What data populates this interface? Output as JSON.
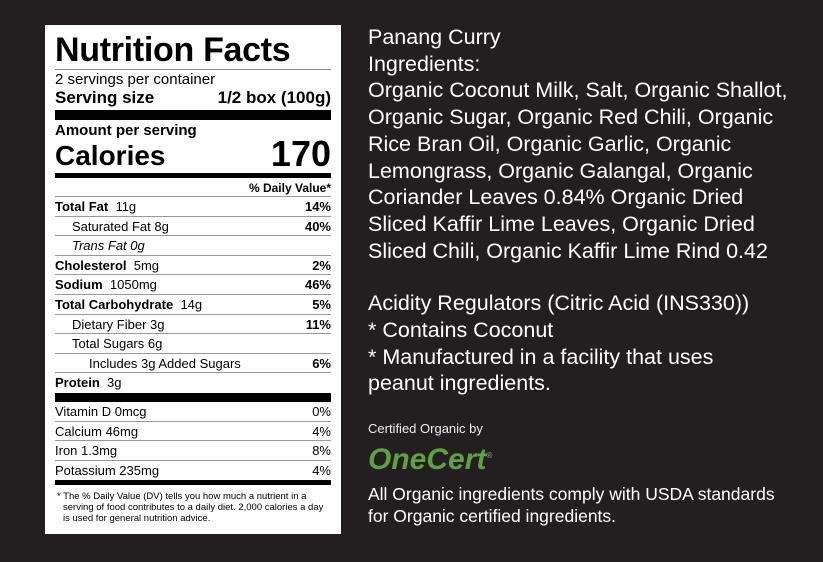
{
  "nutrition": {
    "title": "Nutrition Facts",
    "servings": "2 servings per container",
    "serving_size_label": "Serving size",
    "serving_size_value": "1/2 box (100g)",
    "amount_per_serving": "Amount per serving",
    "calories_label": "Calories",
    "calories_value": "170",
    "dv_header": "% Daily Value*",
    "rows": [
      {
        "name": "Total Fat",
        "amount": "11g",
        "dv": "14%"
      },
      {
        "name": "Saturated Fat 8g",
        "amount": "",
        "dv": "40%"
      },
      {
        "name": "Trans",
        "amount": "Fat 0g",
        "dv": ""
      },
      {
        "name": "Cholesterol",
        "amount": "5mg",
        "dv": "2%"
      },
      {
        "name": "Sodium",
        "amount": "1050mg",
        "dv": "46%"
      },
      {
        "name": "Total Carbohydrate",
        "amount": "14g",
        "dv": "5%"
      },
      {
        "name": "Dietary Fiber 3g",
        "amount": "",
        "dv": "11%"
      },
      {
        "name": "Total Sugars 6g",
        "amount": "",
        "dv": ""
      },
      {
        "name": "Includes 3g Added Sugars",
        "amount": "",
        "dv": "6%"
      },
      {
        "name": "Protein",
        "amount": "3g",
        "dv": ""
      }
    ],
    "vitamins": [
      {
        "name": "Vitamin D 0mcg",
        "dv": "0%"
      },
      {
        "name": "Calcium 46mg",
        "dv": "4%"
      },
      {
        "name": "Iron 1.3mg",
        "dv": "8%"
      },
      {
        "name": "Potassium 235mg",
        "dv": "4%"
      }
    ],
    "footnote": "* The % Daily Value (DV) tells you how much a nutrient in a serving of food contributes to a daily diet. 2,000 calories a day is used for general nutrition advice."
  },
  "ingredients": {
    "product": "Panang Curry",
    "heading": "Ingredients:",
    "lines": [
      "Organic Coconut Milk, Salt, Organic Shallot,",
      "Organic Sugar, Organic Red Chili, Organic",
      "Rice Bran Oil, Organic Garlic, Organic",
      "Lemongrass, Organic Galangal, Organic",
      "Coriander Leaves 0.84% Organic Dried",
      "Sliced Kaffir Lime Leaves, Organic Dried",
      "Sliced Chili, Organic Kaffir Lime Rind 0.42"
    ],
    "lines2": [
      "Acidity Regulators (Citric Acid (INS330))",
      "* Contains Coconut",
      "* Manufactured in a facility that uses",
      "peanut ingredients."
    ],
    "certified_by": "Certified Organic by",
    "logo_text": "OneCert",
    "logo_color": "#5fa043",
    "usda_note": "All Organic ingredients comply with USDA standards for Organic certified ingredients."
  }
}
